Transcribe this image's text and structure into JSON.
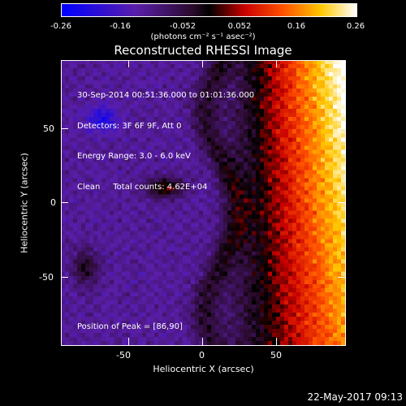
{
  "colorbar": {
    "ticks": [
      "-0.26",
      "-0.16",
      "-0.052",
      "0.052",
      "0.16",
      "0.26"
    ],
    "tick_values": [
      -0.26,
      -0.16,
      -0.052,
      0.052,
      0.16,
      0.26
    ],
    "range": [
      -0.26,
      0.26
    ],
    "units": "(photons cm⁻² s⁻¹ asec⁻²)"
  },
  "title": "Reconstructed RHESSI Image",
  "info": {
    "line1": "30-Sep-2014 00:51:36.000 to 01:01:36.000",
    "line2": "Detectors: 3F 6F 9F, Att 0",
    "line3": "Energy Range: 3.0 - 6.0 keV",
    "line4": "Clean     Total counts: 4.62E+04"
  },
  "peak": "Position of Peak = [86,90]",
  "axes": {
    "xlabel": "Heliocentric X (arcsec)",
    "ylabel": "Heliocentric Y (arcsec)",
    "xticks": [
      "-50",
      "0",
      "50"
    ],
    "yticks": [
      "50",
      "0",
      "-50"
    ],
    "xrange": [
      -96,
      96
    ],
    "yrange": [
      -96,
      96
    ]
  },
  "footer": {
    "date": "22-May-2017 09:13"
  }
}
